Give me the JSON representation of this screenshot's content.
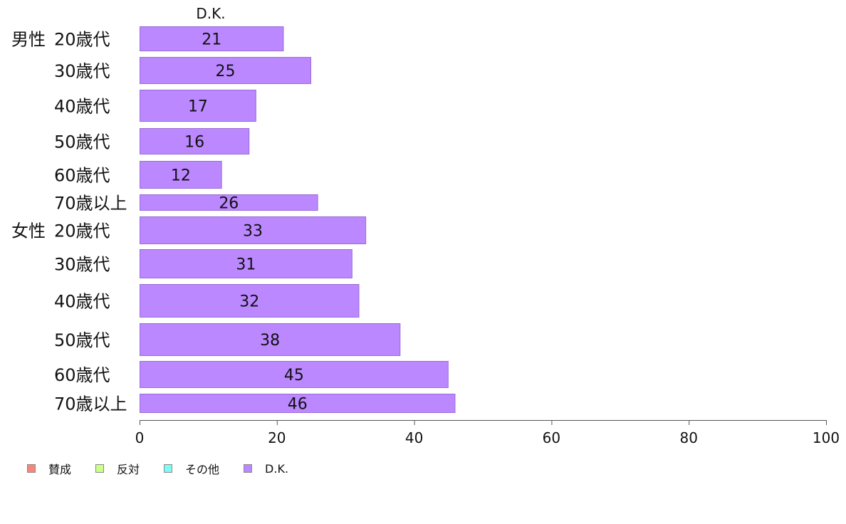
{
  "chart_data": {
    "type": "bar",
    "orientation": "horizontal",
    "panel_title": "D.K.",
    "groups": [
      "男性",
      "女性"
    ],
    "categories": [
      "20歳代",
      "30歳代",
      "40歳代",
      "50歳代",
      "60歳代",
      "70歳以上",
      "20歳代",
      "30歳代",
      "40歳代",
      "50歳代",
      "60歳代",
      "70歳以上"
    ],
    "series": [
      {
        "name": "D.K.",
        "color": "#bb88ff",
        "values": [
          21,
          25,
          17,
          16,
          12,
          26,
          33,
          31,
          32,
          38,
          45,
          46
        ]
      }
    ],
    "xlim": [
      0,
      100
    ],
    "xticks": [
      "0",
      "20",
      "40",
      "60",
      "80",
      "100"
    ],
    "grid": false,
    "legend": {
      "placement": "bottom-left",
      "entries": [
        {
          "label": "賛成",
          "color": "#f8857b"
        },
        {
          "label": "反対",
          "color": "#ccff88"
        },
        {
          "label": "その他",
          "color": "#7ffaf5"
        },
        {
          "label": "D.K.",
          "color": "#bb88ff"
        }
      ]
    }
  }
}
